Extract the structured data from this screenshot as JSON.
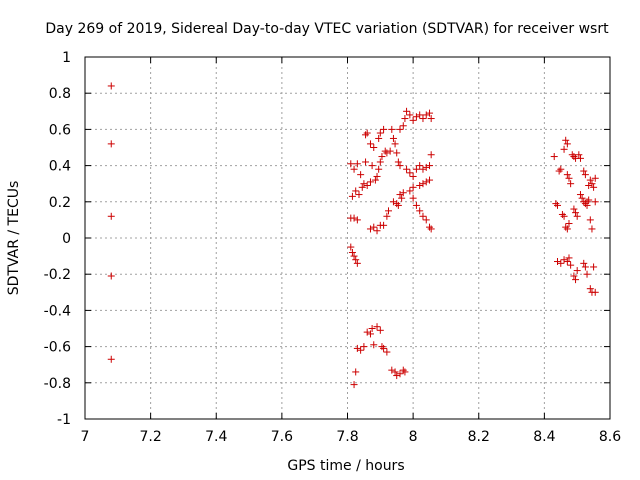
{
  "chart_data": {
    "type": "scatter",
    "title": "Day 269 of 2019, Sidereal Day-to-day VTEC variation (SDTVAR) for receiver wsrt",
    "xlabel": "GPS time / hours",
    "ylabel": "SDTVAR / TECUs",
    "xlim": [
      7,
      8.6
    ],
    "ylim": [
      -1,
      1
    ],
    "xticks": [
      "7",
      "7.2",
      "7.4",
      "7.6",
      "7.8",
      "8",
      "8.2",
      "8.4",
      "8.6"
    ],
    "yticks": [
      "-1",
      "-0.8",
      "-0.6",
      "-0.4",
      "-0.2",
      "0",
      "0.2",
      "0.4",
      "0.6",
      "0.8",
      "1"
    ],
    "grid": true,
    "marker": "+",
    "marker_color": "#cc0000",
    "series": [
      {
        "name": "SDTVAR",
        "points": [
          [
            7.08,
            0.84
          ],
          [
            7.08,
            0.52
          ],
          [
            7.08,
            0.12
          ],
          [
            7.08,
            -0.21
          ],
          [
            7.08,
            -0.67
          ],
          [
            7.81,
            -0.05
          ],
          [
            7.815,
            -0.08
          ],
          [
            7.82,
            -0.1
          ],
          [
            7.825,
            -0.12
          ],
          [
            7.83,
            -0.14
          ],
          [
            7.81,
            0.11
          ],
          [
            7.82,
            0.11
          ],
          [
            7.83,
            0.1
          ],
          [
            7.815,
            0.23
          ],
          [
            7.825,
            0.26
          ],
          [
            7.835,
            0.24
          ],
          [
            7.81,
            0.41
          ],
          [
            7.82,
            0.38
          ],
          [
            7.83,
            0.41
          ],
          [
            7.84,
            0.35
          ],
          [
            7.845,
            0.28
          ],
          [
            7.85,
            0.3
          ],
          [
            7.86,
            0.29
          ],
          [
            7.87,
            0.31
          ],
          [
            7.855,
            0.42
          ],
          [
            7.855,
            0.57
          ],
          [
            7.86,
            0.58
          ],
          [
            7.87,
            0.52
          ],
          [
            7.88,
            0.5
          ],
          [
            7.875,
            0.4
          ],
          [
            7.87,
            0.05
          ],
          [
            7.88,
            0.06
          ],
          [
            7.89,
            0.04
          ],
          [
            7.9,
            0.07
          ],
          [
            7.91,
            0.07
          ],
          [
            7.885,
            0.32
          ],
          [
            7.89,
            0.34
          ],
          [
            7.895,
            0.38
          ],
          [
            7.9,
            0.42
          ],
          [
            7.905,
            0.45
          ],
          [
            7.895,
            0.55
          ],
          [
            7.9,
            0.58
          ],
          [
            7.91,
            0.6
          ],
          [
            7.915,
            0.48
          ],
          [
            7.92,
            0.47
          ],
          [
            7.92,
            0.12
          ],
          [
            7.925,
            0.15
          ],
          [
            7.93,
            0.48
          ],
          [
            7.935,
            0.6
          ],
          [
            7.94,
            0.55
          ],
          [
            7.945,
            0.52
          ],
          [
            7.95,
            0.47
          ],
          [
            7.955,
            0.42
          ],
          [
            7.96,
            0.4
          ],
          [
            7.94,
            0.2
          ],
          [
            7.95,
            0.19
          ],
          [
            7.955,
            0.18
          ],
          [
            7.96,
            0.24
          ],
          [
            7.965,
            0.22
          ],
          [
            7.97,
            0.25
          ],
          [
            7.96,
            0.6
          ],
          [
            7.97,
            0.62
          ],
          [
            7.975,
            0.66
          ],
          [
            7.98,
            0.7
          ],
          [
            7.99,
            0.68
          ],
          [
            7.98,
            0.38
          ],
          [
            7.99,
            0.36
          ],
          [
            8.0,
            0.34
          ],
          [
            8.01,
            0.38
          ],
          [
            8.02,
            0.4
          ],
          [
            7.99,
            0.26
          ],
          [
            8.0,
            0.22
          ],
          [
            8.01,
            0.18
          ],
          [
            8.02,
            0.15
          ],
          [
            8.03,
            0.12
          ],
          [
            8.04,
            0.1
          ],
          [
            8.05,
            0.06
          ],
          [
            8.055,
            0.05
          ],
          [
            8.0,
            0.65
          ],
          [
            8.01,
            0.67
          ],
          [
            8.02,
            0.68
          ],
          [
            8.03,
            0.66
          ],
          [
            8.04,
            0.68
          ],
          [
            8.05,
            0.69
          ],
          [
            8.055,
            0.66
          ],
          [
            8.0,
            0.28
          ],
          [
            8.02,
            0.29
          ],
          [
            8.03,
            0.3
          ],
          [
            8.04,
            0.31
          ],
          [
            8.05,
            0.32
          ],
          [
            8.055,
            0.46
          ],
          [
            8.03,
            0.38
          ],
          [
            8.04,
            0.39
          ],
          [
            8.05,
            0.4
          ],
          [
            7.82,
            -0.81
          ],
          [
            7.825,
            -0.74
          ],
          [
            7.83,
            -0.61
          ],
          [
            7.84,
            -0.62
          ],
          [
            7.85,
            -0.6
          ],
          [
            7.86,
            -0.52
          ],
          [
            7.87,
            -0.53
          ],
          [
            7.875,
            -0.5
          ],
          [
            7.88,
            -0.59
          ],
          [
            7.89,
            -0.49
          ],
          [
            7.9,
            -0.51
          ],
          [
            7.905,
            -0.6
          ],
          [
            7.91,
            -0.61
          ],
          [
            7.92,
            -0.63
          ],
          [
            7.935,
            -0.73
          ],
          [
            7.945,
            -0.74
          ],
          [
            7.95,
            -0.76
          ],
          [
            7.96,
            -0.75
          ],
          [
            7.97,
            -0.73
          ],
          [
            7.975,
            -0.74
          ],
          [
            8.43,
            0.45
          ],
          [
            8.435,
            0.19
          ],
          [
            8.44,
            0.18
          ],
          [
            8.44,
            -0.13
          ],
          [
            8.45,
            -0.14
          ],
          [
            8.445,
            0.37
          ],
          [
            8.45,
            0.38
          ],
          [
            8.455,
            0.13
          ],
          [
            8.46,
            0.12
          ],
          [
            8.46,
            0.49
          ],
          [
            8.465,
            0.54
          ],
          [
            8.47,
            0.52
          ],
          [
            8.47,
            0.35
          ],
          [
            8.475,
            0.33
          ],
          [
            8.48,
            0.3
          ],
          [
            8.465,
            0.06
          ],
          [
            8.47,
            0.05
          ],
          [
            8.475,
            0.08
          ],
          [
            8.46,
            -0.12
          ],
          [
            8.47,
            -0.13
          ],
          [
            8.475,
            -0.11
          ],
          [
            8.48,
            -0.15
          ],
          [
            8.485,
            0.46
          ],
          [
            8.49,
            0.45
          ],
          [
            8.495,
            0.44
          ],
          [
            8.49,
            0.16
          ],
          [
            8.495,
            0.14
          ],
          [
            8.5,
            0.12
          ],
          [
            8.49,
            -0.21
          ],
          [
            8.495,
            -0.23
          ],
          [
            8.5,
            -0.18
          ],
          [
            8.505,
            0.46
          ],
          [
            8.51,
            0.44
          ],
          [
            8.51,
            0.24
          ],
          [
            8.515,
            0.22
          ],
          [
            8.52,
            0.37
          ],
          [
            8.525,
            0.35
          ],
          [
            8.52,
            0.2
          ],
          [
            8.525,
            0.19
          ],
          [
            8.53,
            0.18
          ],
          [
            8.52,
            -0.14
          ],
          [
            8.525,
            -0.16
          ],
          [
            8.53,
            -0.2
          ],
          [
            8.535,
            0.29
          ],
          [
            8.54,
            0.32
          ],
          [
            8.545,
            0.3
          ],
          [
            8.55,
            0.28
          ],
          [
            8.555,
            0.33
          ],
          [
            8.54,
            0.1
          ],
          [
            8.545,
            0.05
          ],
          [
            8.54,
            -0.28
          ],
          [
            8.545,
            -0.3
          ],
          [
            8.555,
            -0.3
          ],
          [
            8.55,
            -0.16
          ],
          [
            8.555,
            0.2
          ],
          [
            8.53,
            0.2
          ],
          [
            8.535,
            0.21
          ]
        ]
      }
    ]
  }
}
